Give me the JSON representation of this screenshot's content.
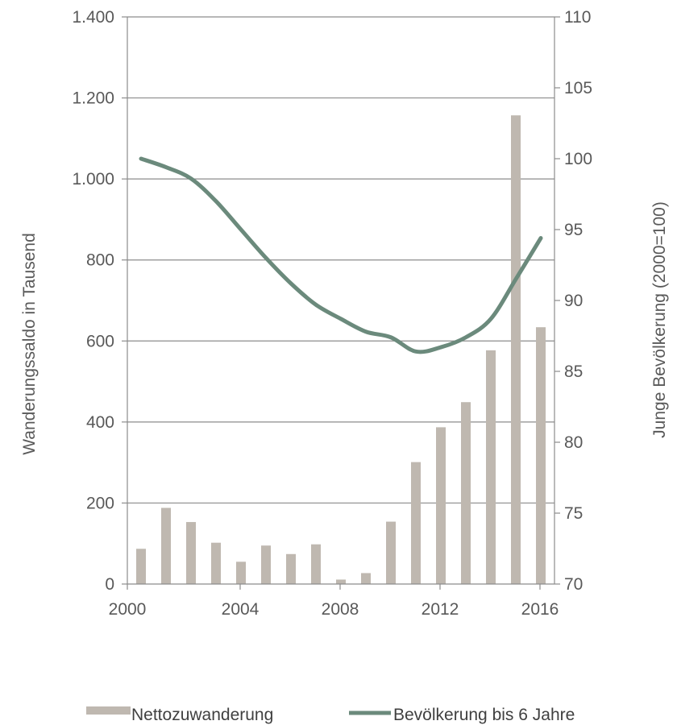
{
  "chart_data": {
    "type": "bar",
    "x": [
      2000,
      2001,
      2002,
      2003,
      2004,
      2005,
      2006,
      2007,
      2008,
      2009,
      2010,
      2011,
      2012,
      2013,
      2014,
      2015,
      2016
    ],
    "x_tick_labels": [
      "2000",
      "2004",
      "2008",
      "2012",
      "2016"
    ],
    "series": [
      {
        "name": "Nettozuwanderung",
        "type": "bar",
        "axis": "left",
        "color": "#bfb8b0",
        "values": [
          87,
          188,
          153,
          102,
          55,
          95,
          74,
          98,
          11,
          27,
          154,
          301,
          387,
          449,
          577,
          1157,
          634
        ]
      },
      {
        "name": "Bevölkerung bis 6 Jahre",
        "type": "line",
        "axis": "right",
        "color": "#6b8a7c",
        "values": [
          100.0,
          99.4,
          98.6,
          97.0,
          95.0,
          93.0,
          91.2,
          89.7,
          88.7,
          87.8,
          87.4,
          86.4,
          86.7,
          87.4,
          88.7,
          91.5,
          94.4
        ]
      }
    ],
    "ylabel": "Wanderungssaldo in Tausend",
    "ylabel_right": "Junge Bevölkerung (2000=100)",
    "ylim": [
      0,
      1400
    ],
    "ylim_right": [
      70,
      110
    ],
    "y_ticks": [
      0,
      200,
      400,
      600,
      800,
      1000,
      1200,
      1400
    ],
    "y_tick_labels": [
      "0",
      "200",
      "400",
      "600",
      "800",
      "1.000",
      "1.200",
      "1.400"
    ],
    "y_ticks_right": [
      "70",
      "75",
      "80",
      "85",
      "90",
      "95",
      "100",
      "105",
      "110"
    ],
    "grid": true,
    "legend_position": "bottom"
  }
}
